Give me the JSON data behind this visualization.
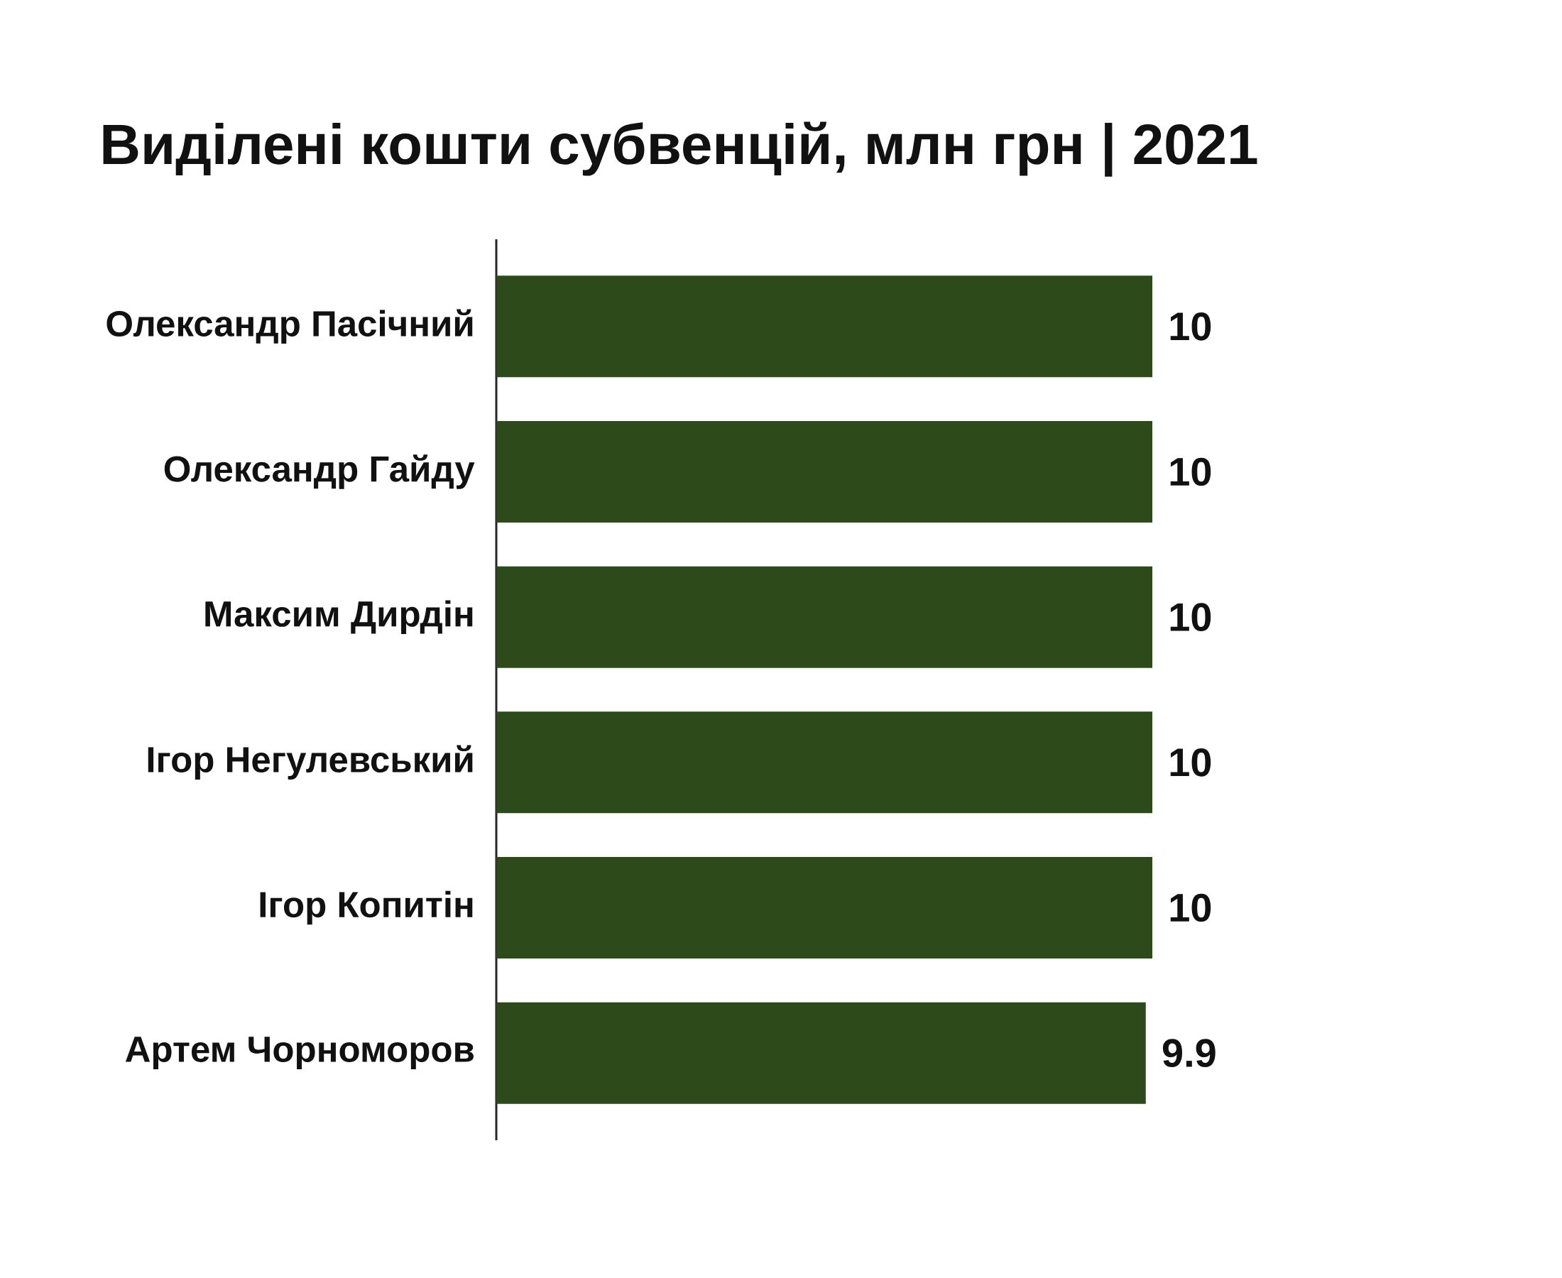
{
  "chart_data": {
    "type": "bar",
    "orientation": "horizontal",
    "title": "Виділені кошти субвенцій, млн грн | 2021",
    "categories": [
      "Олександр Пасічний",
      "Олександр Гайду",
      "Максим Дирдін",
      "Ігор Негулевський",
      "Ігор Копитін",
      "Артем Чорноморов"
    ],
    "values": [
      10,
      10,
      10,
      10,
      10,
      9.9
    ],
    "color": "#2d4a1b",
    "data_labels": true
  }
}
